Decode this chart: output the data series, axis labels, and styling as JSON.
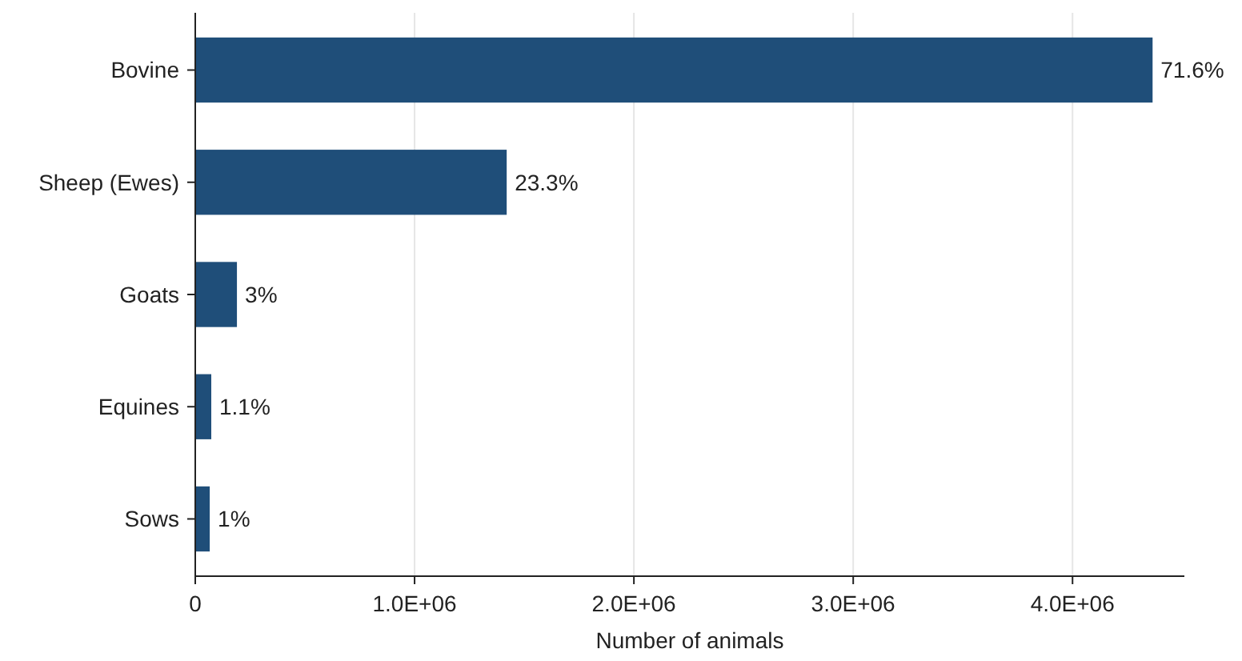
{
  "chart_data": {
    "type": "bar",
    "orientation": "horizontal",
    "xlabel": "Number of animals",
    "categories": [
      "Bovine",
      "Sheep (Ewes)",
      "Goats",
      "Equines",
      "Sows"
    ],
    "values": [
      4365000,
      1420000,
      190000,
      73000,
      66000
    ],
    "annotations": [
      {
        "text": "71.6%",
        "x": 4365000,
        "y": "Bovine"
      },
      {
        "text": "23.3%",
        "x": 1420000,
        "y": "Sheep (Ewes)"
      },
      {
        "text": "3%",
        "x": 190000,
        "y": "Goats"
      },
      {
        "text": "1.1%",
        "x": 73000,
        "y": "Equines"
      },
      {
        "text": "1%",
        "x": 66000,
        "y": "Sows"
      }
    ],
    "color": "#1f4e79",
    "xlim": [
      0,
      4510000
    ],
    "xticks": [
      0,
      {
        "value": 1000000,
        "label": "1.0E+06"
      },
      {
        "value": 2000000,
        "label": "2.0E+06"
      },
      {
        "value": 3000000,
        "label": "3.0E+06"
      },
      {
        "value": 4000000,
        "label": "4.0E+06"
      }
    ],
    "grid": "x"
  }
}
